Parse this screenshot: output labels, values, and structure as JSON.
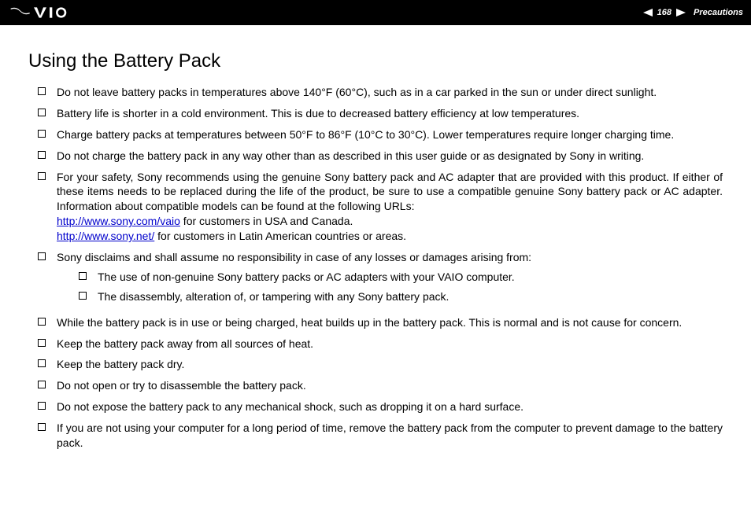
{
  "header": {
    "page_number": "168",
    "breadcrumb": "Precautions",
    "colors": {
      "bg": "#000000",
      "fg": "#ffffff"
    }
  },
  "title": "Using the Battery Pack",
  "items": [
    {
      "text": "Do not leave battery packs in temperatures above 140°F (60°C), such as in a car parked in the sun or under direct sunlight."
    },
    {
      "text": "Battery life is shorter in a cold environment. This is due to decreased battery efficiency at low temperatures."
    },
    {
      "text": "Charge battery packs at temperatures between 50°F to 86°F (10°C to 30°C). Lower temperatures require longer charging time."
    },
    {
      "text": "Do not charge the battery pack in any way other than as described in this user guide or as designated by Sony in writing."
    },
    {
      "pre": "For your safety, Sony recommends using the genuine Sony battery pack and AC adapter that are provided with this product. If either of these items needs to be replaced during the life of the product, be sure to use a compatible genuine Sony battery pack or AC adapter. Information about compatible models can be found at the following URLs:",
      "link1": "http://www.sony.com/vaio",
      "mid1": " for customers in USA and Canada.",
      "link2": "http://www.sony.net/",
      "mid2": " for customers in Latin American countries or areas."
    },
    {
      "text": "Sony disclaims and shall assume no responsibility in case of any losses or damages arising from:",
      "sub": [
        {
          "text": "The use of non-genuine Sony battery packs or AC adapters with your VAIO computer."
        },
        {
          "text": "The disassembly, alteration of, or tampering with any Sony battery pack."
        }
      ]
    },
    {
      "text": "While the battery pack is in use or being charged, heat builds up in the battery pack. This is normal and is not cause for concern."
    },
    {
      "text": "Keep the battery pack away from all sources of heat."
    },
    {
      "text": "Keep the battery pack dry."
    },
    {
      "text": "Do not open or try to disassemble the battery pack."
    },
    {
      "text": "Do not expose the battery pack to any mechanical shock, such as dropping it on a hard surface."
    },
    {
      "text": "If you are not using your computer for a long period of time, remove the battery pack from the computer to prevent damage to the battery pack."
    }
  ]
}
